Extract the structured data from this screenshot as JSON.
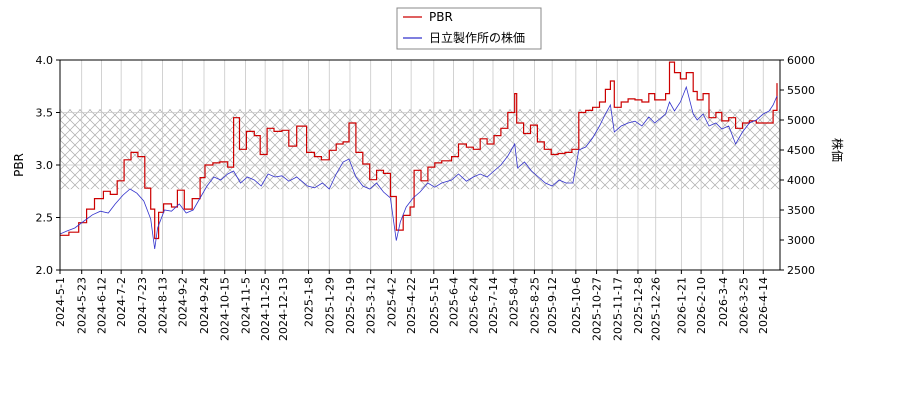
{
  "chart_data": {
    "type": "line",
    "title": "",
    "legend": {
      "placement": "top-center",
      "entries": [
        "PBR",
        "日立製作所の株価"
      ]
    },
    "grid": true,
    "band": {
      "axis": "left",
      "range": [
        2.77,
        3.53
      ],
      "pattern": "crosshatch"
    },
    "y_left": {
      "label": "PBR",
      "lim": [
        2.0,
        4.0
      ],
      "ticks": [
        "2.0",
        "2.5",
        "3.0",
        "3.5",
        "4.0"
      ]
    },
    "y_right": {
      "label": "株価",
      "lim": [
        2500,
        6000
      ],
      "ticks": [
        "2500",
        "3000",
        "3500",
        "4000",
        "4500",
        "5000",
        "5500",
        "6000"
      ]
    },
    "x": {
      "start": "2024-5-1",
      "end": "2026-5-1",
      "ticks": [
        "2024-5-1",
        "2024-5-23",
        "2024-6-12",
        "2024-7-2",
        "2024-7-23",
        "2024-8-13",
        "2024-9-2",
        "2024-9-24",
        "2024-10-15",
        "2024-11-5",
        "2024-11-25",
        "2024-12-13",
        "2025-1-8",
        "2025-1-29",
        "2025-2-19",
        "2025-3-12",
        "2025-4-2",
        "2025-4-22",
        "2025-5-15",
        "2025-6-4",
        "2025-6-24",
        "2025-7-14",
        "2025-8-4",
        "2025-8-25",
        "2025-9-12",
        "2025-10-6",
        "2025-10-27",
        "2025-11-17",
        "2025-12-8",
        "2025-12-26",
        "2026-1-21",
        "2026-2-10",
        "2026-3-4",
        "2026-3-25",
        "2026-4-14"
      ]
    },
    "series": [
      {
        "name": "PBR",
        "axis": "left",
        "color": "#cc0000",
        "points": [
          [
            "2024-5-1",
            2.33
          ],
          [
            "2024-5-10",
            2.36
          ],
          [
            "2024-5-20",
            2.45
          ],
          [
            "2024-5-28",
            2.58
          ],
          [
            "2024-6-5",
            2.68
          ],
          [
            "2024-6-14",
            2.75
          ],
          [
            "2024-6-21",
            2.72
          ],
          [
            "2024-6-28",
            2.85
          ],
          [
            "2024-7-5",
            3.05
          ],
          [
            "2024-7-12",
            3.12
          ],
          [
            "2024-7-19",
            3.08
          ],
          [
            "2024-7-26",
            2.78
          ],
          [
            "2024-8-1",
            2.58
          ],
          [
            "2024-8-5",
            2.3
          ],
          [
            "2024-8-9",
            2.55
          ],
          [
            "2024-8-14",
            2.63
          ],
          [
            "2024-8-22",
            2.6
          ],
          [
            "2024-8-28",
            2.76
          ],
          [
            "2024-9-4",
            2.58
          ],
          [
            "2024-9-12",
            2.68
          ],
          [
            "2024-9-20",
            2.88
          ],
          [
            "2024-9-25",
            3.0
          ],
          [
            "2024-10-3",
            3.02
          ],
          [
            "2024-10-10",
            3.03
          ],
          [
            "2024-10-18",
            2.98
          ],
          [
            "2024-10-24",
            3.45
          ],
          [
            "2024-10-30",
            3.15
          ],
          [
            "2024-11-6",
            3.32
          ],
          [
            "2024-11-14",
            3.28
          ],
          [
            "2024-11-20",
            3.1
          ],
          [
            "2024-11-27",
            3.35
          ],
          [
            "2024-12-4",
            3.32
          ],
          [
            "2024-12-12",
            3.33
          ],
          [
            "2024-12-19",
            3.18
          ],
          [
            "2024-12-27",
            3.37
          ],
          [
            "2025-1-6",
            3.12
          ],
          [
            "2025-1-14",
            3.08
          ],
          [
            "2025-1-21",
            3.05
          ],
          [
            "2025-1-29",
            3.14
          ],
          [
            "2025-2-5",
            3.2
          ],
          [
            "2025-2-12",
            3.22
          ],
          [
            "2025-2-18",
            3.4
          ],
          [
            "2025-2-25",
            3.12
          ],
          [
            "2025-3-4",
            3.01
          ],
          [
            "2025-3-11",
            2.86
          ],
          [
            "2025-3-18",
            2.95
          ],
          [
            "2025-3-25",
            2.92
          ],
          [
            "2025-4-1",
            2.7
          ],
          [
            "2025-4-7",
            2.38
          ],
          [
            "2025-4-14",
            2.52
          ],
          [
            "2025-4-21",
            2.6
          ],
          [
            "2025-4-25",
            2.95
          ],
          [
            "2025-5-2",
            2.85
          ],
          [
            "2025-5-9",
            2.98
          ],
          [
            "2025-5-16",
            3.02
          ],
          [
            "2025-5-23",
            3.04
          ],
          [
            "2025-6-2",
            3.08
          ],
          [
            "2025-6-9",
            3.2
          ],
          [
            "2025-6-17",
            3.17
          ],
          [
            "2025-6-24",
            3.15
          ],
          [
            "2025-7-1",
            3.25
          ],
          [
            "2025-7-8",
            3.2
          ],
          [
            "2025-7-15",
            3.28
          ],
          [
            "2025-7-22",
            3.35
          ],
          [
            "2025-7-29",
            3.5
          ],
          [
            "2025-8-5",
            3.68
          ],
          [
            "2025-8-7",
            3.4
          ],
          [
            "2025-8-14",
            3.3
          ],
          [
            "2025-8-21",
            3.38
          ],
          [
            "2025-8-28",
            3.22
          ],
          [
            "2025-9-4",
            3.15
          ],
          [
            "2025-9-11",
            3.1
          ],
          [
            "2025-9-18",
            3.11
          ],
          [
            "2025-9-25",
            3.12
          ],
          [
            "2025-10-2",
            3.15
          ],
          [
            "2025-10-9",
            3.5
          ],
          [
            "2025-10-16",
            3.52
          ],
          [
            "2025-10-23",
            3.55
          ],
          [
            "2025-10-30",
            3.6
          ],
          [
            "2025-11-5",
            3.72
          ],
          [
            "2025-11-10",
            3.8
          ],
          [
            "2025-11-14",
            3.55
          ],
          [
            "2025-11-21",
            3.6
          ],
          [
            "2025-11-28",
            3.63
          ],
          [
            "2025-12-5",
            3.62
          ],
          [
            "2025-12-12",
            3.6
          ],
          [
            "2025-12-19",
            3.68
          ],
          [
            "2025-12-25",
            3.62
          ],
          [
            "2026-1-5",
            3.68
          ],
          [
            "2026-1-9",
            3.98
          ],
          [
            "2026-1-14",
            3.88
          ],
          [
            "2026-1-20",
            3.82
          ],
          [
            "2026-1-26",
            3.88
          ],
          [
            "2026-2-2",
            3.7
          ],
          [
            "2026-2-6",
            3.62
          ],
          [
            "2026-2-12",
            3.68
          ],
          [
            "2026-2-18",
            3.45
          ],
          [
            "2026-2-25",
            3.5
          ],
          [
            "2026-3-3",
            3.42
          ],
          [
            "2026-3-10",
            3.45
          ],
          [
            "2026-3-17",
            3.35
          ],
          [
            "2026-3-24",
            3.4
          ],
          [
            "2026-3-31",
            3.42
          ],
          [
            "2026-4-7",
            3.4
          ],
          [
            "2026-4-14",
            3.4
          ],
          [
            "2026-4-20",
            3.4
          ],
          [
            "2026-4-24",
            3.52
          ],
          [
            "2026-4-28",
            3.78
          ]
        ]
      },
      {
        "name": "日立製作所の株価",
        "axis": "right",
        "color": "#3333cc",
        "points": [
          [
            "2024-5-1",
            3100
          ],
          [
            "2024-5-8",
            3150
          ],
          [
            "2024-5-16",
            3200
          ],
          [
            "2024-5-24",
            3300
          ],
          [
            "2024-6-3",
            3420
          ],
          [
            "2024-6-11",
            3480
          ],
          [
            "2024-6-19",
            3450
          ],
          [
            "2024-6-26",
            3600
          ],
          [
            "2024-7-4",
            3750
          ],
          [
            "2024-7-11",
            3850
          ],
          [
            "2024-7-18",
            3780
          ],
          [
            "2024-7-25",
            3650
          ],
          [
            "2024-8-1",
            3350
          ],
          [
            "2024-8-5",
            2850
          ],
          [
            "2024-8-8",
            3200
          ],
          [
            "2024-8-15",
            3500
          ],
          [
            "2024-8-22",
            3480
          ],
          [
            "2024-8-30",
            3600
          ],
          [
            "2024-9-6",
            3450
          ],
          [
            "2024-9-13",
            3500
          ],
          [
            "2024-9-20",
            3700
          ],
          [
            "2024-9-27",
            3900
          ],
          [
            "2024-10-4",
            4050
          ],
          [
            "2024-10-11",
            4000
          ],
          [
            "2024-10-18",
            4100
          ],
          [
            "2024-10-24",
            4150
          ],
          [
            "2024-10-31",
            3950
          ],
          [
            "2024-11-7",
            4050
          ],
          [
            "2024-11-14",
            4000
          ],
          [
            "2024-11-21",
            3900
          ],
          [
            "2024-11-28",
            4100
          ],
          [
            "2024-12-5",
            4050
          ],
          [
            "2024-12-12",
            4070
          ],
          [
            "2024-12-19",
            3980
          ],
          [
            "2024-12-27",
            4050
          ],
          [
            "2025-1-7",
            3900
          ],
          [
            "2025-1-14",
            3870
          ],
          [
            "2025-1-22",
            3950
          ],
          [
            "2025-1-29",
            3850
          ],
          [
            "2025-2-5",
            4100
          ],
          [
            "2025-2-12",
            4300
          ],
          [
            "2025-2-18",
            4350
          ],
          [
            "2025-2-25",
            4050
          ],
          [
            "2025-3-4",
            3900
          ],
          [
            "2025-3-11",
            3850
          ],
          [
            "2025-3-18",
            3950
          ],
          [
            "2025-3-25",
            3800
          ],
          [
            "2025-4-1",
            3700
          ],
          [
            "2025-4-7",
            2990
          ],
          [
            "2025-4-11",
            3300
          ],
          [
            "2025-4-17",
            3550
          ],
          [
            "2025-4-24",
            3700
          ],
          [
            "2025-5-1",
            3800
          ],
          [
            "2025-5-9",
            3950
          ],
          [
            "2025-5-16",
            3880
          ],
          [
            "2025-5-23",
            3950
          ],
          [
            "2025-6-2",
            4000
          ],
          [
            "2025-6-9",
            4100
          ],
          [
            "2025-6-17",
            3980
          ],
          [
            "2025-6-24",
            4050
          ],
          [
            "2025-7-1",
            4100
          ],
          [
            "2025-7-8",
            4050
          ],
          [
            "2025-7-15",
            4150
          ],
          [
            "2025-7-22",
            4250
          ],
          [
            "2025-7-29",
            4400
          ],
          [
            "2025-8-5",
            4600
          ],
          [
            "2025-8-8",
            4200
          ],
          [
            "2025-8-15",
            4300
          ],
          [
            "2025-8-22",
            4150
          ],
          [
            "2025-8-29",
            4050
          ],
          [
            "2025-9-5",
            3950
          ],
          [
            "2025-9-12",
            3900
          ],
          [
            "2025-9-19",
            4000
          ],
          [
            "2025-9-26",
            3950
          ],
          [
            "2025-10-3",
            3950
          ],
          [
            "2025-10-9",
            4500
          ],
          [
            "2025-10-16",
            4550
          ],
          [
            "2025-10-23",
            4700
          ],
          [
            "2025-10-30",
            4900
          ],
          [
            "2025-11-5",
            5100
          ],
          [
            "2025-11-10",
            5250
          ],
          [
            "2025-11-14",
            4800
          ],
          [
            "2025-11-21",
            4900
          ],
          [
            "2025-11-28",
            4950
          ],
          [
            "2025-12-5",
            4980
          ],
          [
            "2025-12-12",
            4900
          ],
          [
            "2025-12-19",
            5050
          ],
          [
            "2025-12-25",
            4950
          ],
          [
            "2026-1-5",
            5100
          ],
          [
            "2026-1-9",
            5300
          ],
          [
            "2026-1-14",
            5150
          ],
          [
            "2026-1-20",
            5300
          ],
          [
            "2026-1-26",
            5550
          ],
          [
            "2026-2-2",
            5100
          ],
          [
            "2026-2-6",
            5000
          ],
          [
            "2026-2-12",
            5100
          ],
          [
            "2026-2-18",
            4900
          ],
          [
            "2026-2-25",
            4950
          ],
          [
            "2026-3-3",
            4850
          ],
          [
            "2026-3-10",
            4900
          ],
          [
            "2026-3-17",
            4600
          ],
          [
            "2026-3-24",
            4800
          ],
          [
            "2026-3-31",
            4950
          ],
          [
            "2026-4-7",
            5000
          ],
          [
            "2026-4-14",
            5100
          ],
          [
            "2026-4-20",
            5150
          ],
          [
            "2026-4-24",
            5250
          ],
          [
            "2026-4-28",
            5400
          ]
        ]
      }
    ]
  }
}
